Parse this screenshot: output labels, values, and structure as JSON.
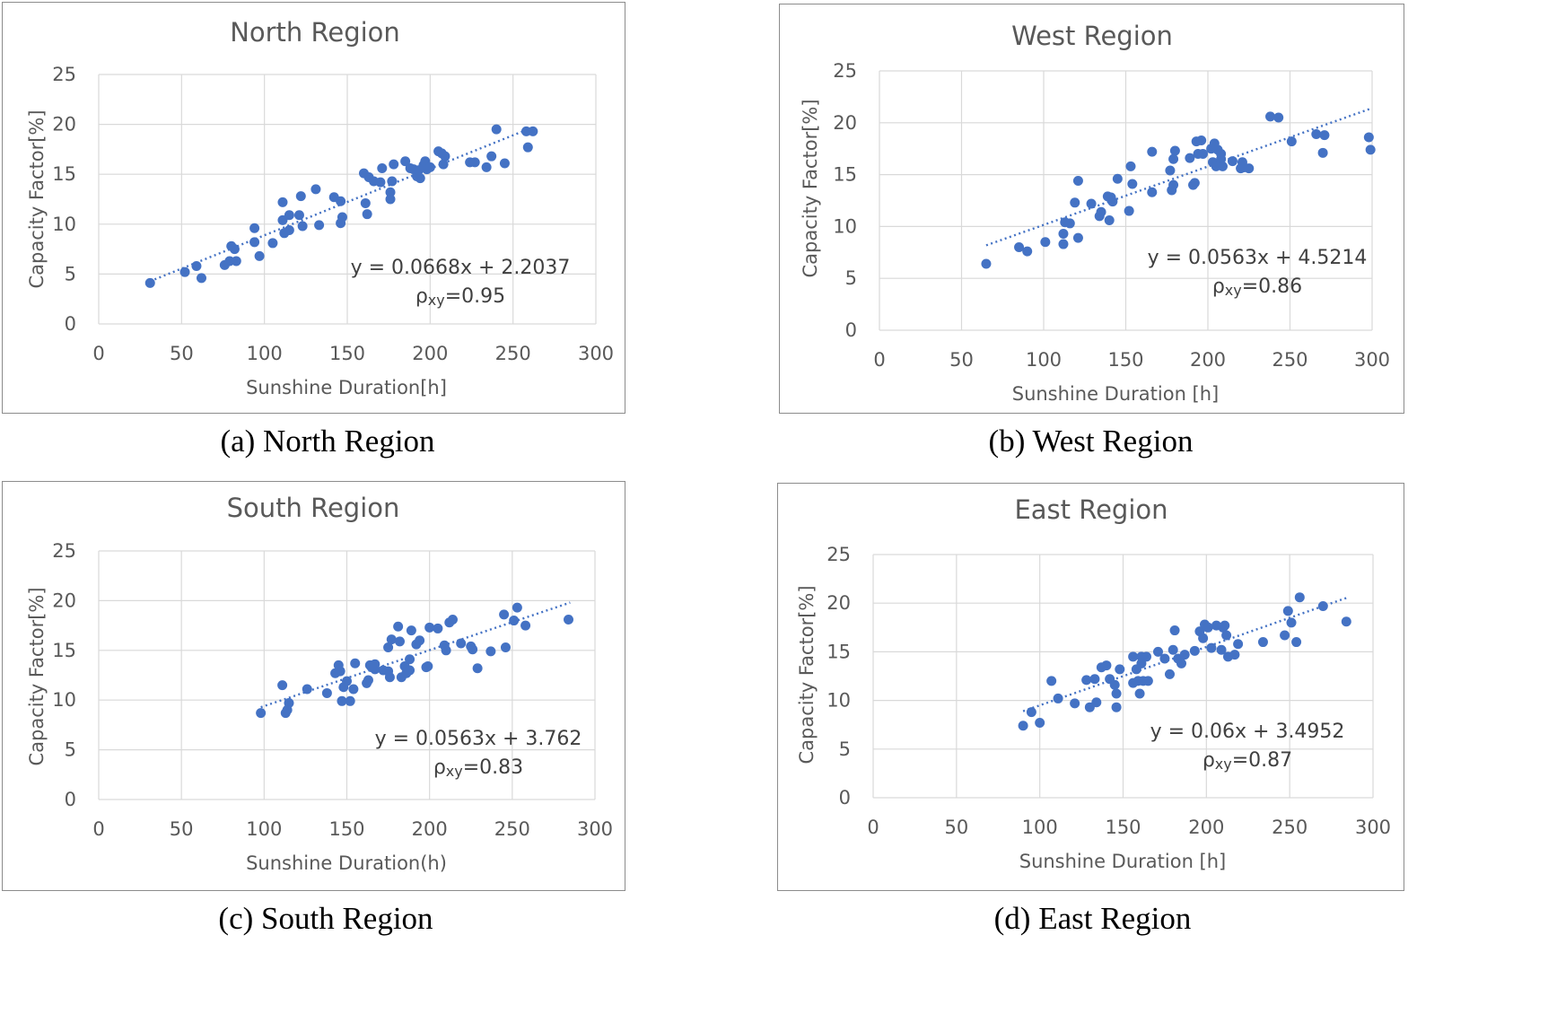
{
  "colors": {
    "marker": "#4472c4",
    "grid": "#d9d9d9",
    "text": "#595959",
    "border": "#8c8c8c"
  },
  "captions": [
    "(a) North Region",
    "(b) West Region",
    "(c) South Region",
    "(d) East Region"
  ],
  "chart_data": [
    {
      "type": "scatter",
      "title": "North Region",
      "xlabel": "Sunshine Duration[h]",
      "ylabel": "Capacity Factor[%]",
      "xlim": [
        0,
        300
      ],
      "ylim": [
        0,
        25
      ],
      "xticks": [
        "0",
        "50",
        "100",
        "150",
        "200",
        "250",
        "300"
      ],
      "yticks": [
        "0",
        "5",
        "10",
        "15",
        "20",
        "25"
      ],
      "grid": true,
      "trendline": {
        "slope": 0.0668,
        "intercept": 2.2037,
        "x_range": [
          31,
          262
        ],
        "style": "dotted"
      },
      "equation": "y = 0.0668x + 2.2037",
      "rho_label": "ρxy=0.95",
      "points": [
        [
          31,
          4.1
        ],
        [
          52,
          5.2
        ],
        [
          59,
          5.8
        ],
        [
          62,
          4.6
        ],
        [
          76,
          5.9
        ],
        [
          79,
          6.3
        ],
        [
          80,
          7.8
        ],
        [
          82,
          7.5
        ],
        [
          83,
          6.3
        ],
        [
          94,
          8.2
        ],
        [
          94,
          9.6
        ],
        [
          97,
          6.8
        ],
        [
          105,
          8.1
        ],
        [
          111,
          12.2
        ],
        [
          111,
          10.4
        ],
        [
          112,
          9.1
        ],
        [
          115,
          9.4
        ],
        [
          115,
          10.9
        ],
        [
          121,
          10.9
        ],
        [
          122,
          12.8
        ],
        [
          123,
          9.8
        ],
        [
          131,
          13.5
        ],
        [
          133,
          9.9
        ],
        [
          142,
          12.7
        ],
        [
          146,
          12.3
        ],
        [
          146,
          10.1
        ],
        [
          147,
          10.7
        ],
        [
          160,
          15.1
        ],
        [
          161,
          12.1
        ],
        [
          162,
          11.0
        ],
        [
          163,
          14.7
        ],
        [
          166,
          14.3
        ],
        [
          170,
          14.2
        ],
        [
          171,
          15.6
        ],
        [
          176,
          13.2
        ],
        [
          176,
          12.5
        ],
        [
          177,
          14.3
        ],
        [
          178,
          16.0
        ],
        [
          185,
          16.3
        ],
        [
          188,
          15.6
        ],
        [
          190,
          15.5
        ],
        [
          192,
          14.8
        ],
        [
          193,
          15.4
        ],
        [
          194,
          14.6
        ],
        [
          196,
          15.9
        ],
        [
          197,
          16.3
        ],
        [
          198,
          15.5
        ],
        [
          200,
          15.7
        ],
        [
          205,
          17.3
        ],
        [
          207,
          17.1
        ],
        [
          208,
          16.0
        ],
        [
          209,
          16.8
        ],
        [
          224,
          16.2
        ],
        [
          227,
          16.2
        ],
        [
          234,
          15.7
        ],
        [
          237,
          16.8
        ],
        [
          240,
          19.5
        ],
        [
          245,
          16.1
        ],
        [
          258,
          19.3
        ],
        [
          259,
          17.7
        ],
        [
          262,
          19.3
        ]
      ]
    },
    {
      "type": "scatter",
      "title": "West Region",
      "xlabel": "Sunshine Duration [h]",
      "ylabel": "Capacity  Factor[%]",
      "xlim": [
        0,
        300
      ],
      "ylim": [
        0,
        25
      ],
      "xticks": [
        "0",
        "50",
        "100",
        "150",
        "200",
        "250",
        "300"
      ],
      "yticks": [
        "0",
        "5",
        "10",
        "15",
        "20",
        "25"
      ],
      "grid": true,
      "trendline": {
        "slope": 0.0563,
        "intercept": 4.5214,
        "x_range": [
          65,
          300
        ],
        "style": "dotted"
      },
      "equation": "y = 0.0563x + 4.5214",
      "rho_label": "ρxy=0.86",
      "points": [
        [
          65,
          6.4
        ],
        [
          85,
          8.0
        ],
        [
          90,
          7.6
        ],
        [
          101,
          8.5
        ],
        [
          112,
          8.3
        ],
        [
          112,
          9.3
        ],
        [
          113,
          10.4
        ],
        [
          116,
          10.3
        ],
        [
          119,
          12.3
        ],
        [
          121,
          14.4
        ],
        [
          121,
          8.9
        ],
        [
          129,
          12.2
        ],
        [
          134,
          11.0
        ],
        [
          135,
          11.4
        ],
        [
          139,
          12.9
        ],
        [
          140,
          10.6
        ],
        [
          141,
          12.8
        ],
        [
          142,
          12.4
        ],
        [
          145,
          14.6
        ],
        [
          152,
          11.5
        ],
        [
          153,
          15.8
        ],
        [
          154,
          14.1
        ],
        [
          166,
          17.2
        ],
        [
          166,
          13.3
        ],
        [
          177,
          15.4
        ],
        [
          178,
          13.5
        ],
        [
          179,
          14.0
        ],
        [
          179,
          16.5
        ],
        [
          180,
          17.3
        ],
        [
          189,
          16.6
        ],
        [
          191,
          14.0
        ],
        [
          192,
          14.2
        ],
        [
          193,
          18.2
        ],
        [
          194,
          17.0
        ],
        [
          196,
          18.3
        ],
        [
          197,
          17.0
        ],
        [
          202,
          17.5
        ],
        [
          203,
          16.2
        ],
        [
          204,
          18.0
        ],
        [
          205,
          15.8
        ],
        [
          206,
          17.4
        ],
        [
          208,
          17.0
        ],
        [
          208,
          16.5
        ],
        [
          209,
          15.8
        ],
        [
          215,
          16.3
        ],
        [
          220,
          15.6
        ],
        [
          221,
          16.2
        ],
        [
          222,
          15.7
        ],
        [
          225,
          15.6
        ],
        [
          238,
          20.6
        ],
        [
          243,
          20.5
        ],
        [
          251,
          18.2
        ],
        [
          266,
          18.9
        ],
        [
          270,
          17.1
        ],
        [
          271,
          18.8
        ],
        [
          298,
          18.6
        ],
        [
          299,
          17.4
        ]
      ]
    },
    {
      "type": "scatter",
      "title": "South Region",
      "xlabel": "Sunshine Duration(h)",
      "ylabel": "Capacity Factor[%]",
      "xlim": [
        0,
        300
      ],
      "ylim": [
        0,
        25
      ],
      "xticks": [
        "0",
        "50",
        "100",
        "150",
        "200",
        "250",
        "300"
      ],
      "yticks": [
        "0",
        "5",
        "10",
        "15",
        "20",
        "25"
      ],
      "grid": true,
      "trendline": {
        "slope": 0.0563,
        "intercept": 3.762,
        "x_range": [
          98,
          285
        ],
        "style": "dotted"
      },
      "equation": "y = 0.0563x + 3.762",
      "rho_label": "ρxy=0.83",
      "points": [
        [
          98,
          8.7
        ],
        [
          111,
          11.5
        ],
        [
          113,
          8.7
        ],
        [
          114,
          9.0
        ],
        [
          115,
          9.7
        ],
        [
          126,
          11.1
        ],
        [
          138,
          10.7
        ],
        [
          143,
          12.7
        ],
        [
          145,
          13.5
        ],
        [
          146,
          12.9
        ],
        [
          147,
          9.9
        ],
        [
          148,
          11.3
        ],
        [
          150,
          11.9
        ],
        [
          152,
          9.9
        ],
        [
          154,
          11.1
        ],
        [
          155,
          13.7
        ],
        [
          162,
          11.7
        ],
        [
          163,
          12.0
        ],
        [
          164,
          13.5
        ],
        [
          165,
          13.3
        ],
        [
          167,
          13.6
        ],
        [
          167,
          13.1
        ],
        [
          172,
          13.0
        ],
        [
          175,
          12.9
        ],
        [
          175,
          15.3
        ],
        [
          176,
          12.3
        ],
        [
          177,
          16.1
        ],
        [
          181,
          17.4
        ],
        [
          182,
          15.9
        ],
        [
          183,
          12.3
        ],
        [
          185,
          13.4
        ],
        [
          186,
          12.7
        ],
        [
          188,
          13.0
        ],
        [
          188,
          14.1
        ],
        [
          189,
          17.0
        ],
        [
          192,
          15.6
        ],
        [
          194,
          16.0
        ],
        [
          198,
          13.3
        ],
        [
          199,
          13.4
        ],
        [
          200,
          17.3
        ],
        [
          205,
          17.2
        ],
        [
          209,
          15.5
        ],
        [
          210,
          15.0
        ],
        [
          212,
          17.8
        ],
        [
          214,
          18.1
        ],
        [
          219,
          15.7
        ],
        [
          225,
          15.4
        ],
        [
          226,
          15.1
        ],
        [
          229,
          13.2
        ],
        [
          237,
          14.9
        ],
        [
          245,
          18.6
        ],
        [
          246,
          15.3
        ],
        [
          251,
          18.0
        ],
        [
          253,
          19.3
        ],
        [
          258,
          17.5
        ],
        [
          284,
          18.1
        ]
      ]
    },
    {
      "type": "scatter",
      "title": "East Region",
      "xlabel": "Sunshine Duration [h]",
      "ylabel": "Capacity Factor[%]",
      "xlim": [
        0,
        300
      ],
      "ylim": [
        0,
        25
      ],
      "xticks": [
        "0",
        "50",
        "100",
        "150",
        "200",
        "250",
        "300"
      ],
      "yticks": [
        "0",
        "5",
        "10",
        "15",
        "20",
        "25"
      ],
      "grid": true,
      "trendline": {
        "slope": 0.06,
        "intercept": 3.4952,
        "x_range": [
          90,
          284
        ],
        "style": "dotted"
      },
      "equation": "y = 0.06x + 3.4952",
      "rho_label": "ρxy=0.87",
      "points": [
        [
          90,
          7.4
        ],
        [
          95,
          8.8
        ],
        [
          100,
          7.7
        ],
        [
          107,
          12.0
        ],
        [
          111,
          10.2
        ],
        [
          121,
          9.7
        ],
        [
          128,
          12.1
        ],
        [
          130,
          9.3
        ],
        [
          133,
          12.2
        ],
        [
          134,
          9.8
        ],
        [
          137,
          13.4
        ],
        [
          140,
          13.6
        ],
        [
          142,
          12.2
        ],
        [
          145,
          11.6
        ],
        [
          146,
          9.3
        ],
        [
          146,
          10.7
        ],
        [
          148,
          13.2
        ],
        [
          156,
          11.8
        ],
        [
          156,
          14.5
        ],
        [
          158,
          13.2
        ],
        [
          159,
          12.0
        ],
        [
          160,
          10.7
        ],
        [
          161,
          14.5
        ],
        [
          161,
          13.8
        ],
        [
          162,
          12.0
        ],
        [
          164,
          14.5
        ],
        [
          165,
          12.0
        ],
        [
          171,
          15.0
        ],
        [
          175,
          14.3
        ],
        [
          178,
          12.7
        ],
        [
          180,
          15.2
        ],
        [
          181,
          17.2
        ],
        [
          183,
          14.3
        ],
        [
          185,
          13.8
        ],
        [
          187,
          14.7
        ],
        [
          193,
          15.1
        ],
        [
          196,
          17.1
        ],
        [
          198,
          16.4
        ],
        [
          199,
          17.8
        ],
        [
          201,
          17.5
        ],
        [
          203,
          15.4
        ],
        [
          206,
          17.7
        ],
        [
          209,
          15.2
        ],
        [
          210,
          17.5
        ],
        [
          211,
          17.7
        ],
        [
          212,
          16.7
        ],
        [
          213,
          14.5
        ],
        [
          217,
          14.7
        ],
        [
          219,
          15.8
        ],
        [
          234,
          16.0
        ],
        [
          247,
          16.7
        ],
        [
          249,
          19.2
        ],
        [
          251,
          18.0
        ],
        [
          254,
          16.0
        ],
        [
          256,
          20.6
        ],
        [
          270,
          19.7
        ],
        [
          284,
          18.1
        ]
      ]
    }
  ]
}
